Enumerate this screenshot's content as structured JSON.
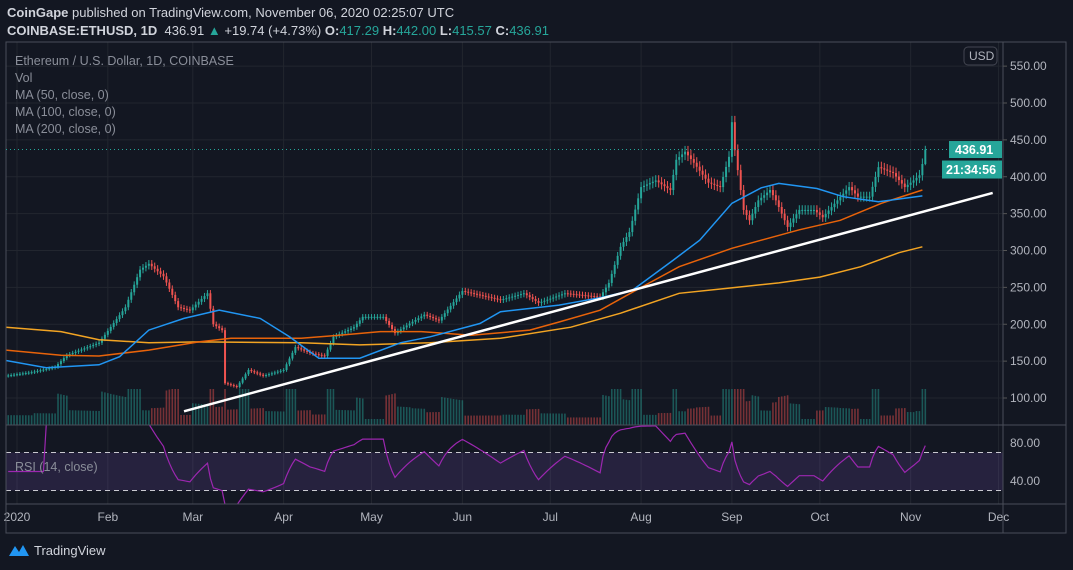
{
  "header": {
    "publisher": "CoinGape",
    "published_text": "published on TradingView.com, November 06, 2020 02:25:07 UTC",
    "symbol": "COINBASE:ETHUSD, 1D",
    "last": "436.91",
    "up_arrow": "▲",
    "change": "+19.74 (+4.73%)",
    "o_label": "O:",
    "o": "417.29",
    "h_label": "H:",
    "h": "442.00",
    "l_label": "L:",
    "l": "415.57",
    "c_label": "C:",
    "c": "436.91"
  },
  "legend": {
    "title": "Ethereum / U.S. Dollar, 1D, COINBASE",
    "vol": "Vol",
    "ma50": "MA (50, close, 0)",
    "ma100": "MA (100, close, 0)",
    "ma200": "MA (200, close, 0)",
    "rsi": "RSI (14, close)"
  },
  "price_axis": {
    "currency": "USD",
    "last_price_label": "436.91",
    "countdown": "21:34:56"
  },
  "footer": {
    "brand": "TradingView"
  },
  "chart_data": {
    "type": "candlestick",
    "x_tick_labels": [
      [
        "2020-01-01",
        "2020"
      ],
      [
        "2020-02-01",
        "Feb"
      ],
      [
        "2020-03-01",
        "Mar"
      ],
      [
        "2020-04-01",
        "Apr"
      ],
      [
        "2020-05-01",
        "May"
      ],
      [
        "2020-06-01",
        "Jun"
      ],
      [
        "2020-07-01",
        "Jul"
      ],
      [
        "2020-08-01",
        "Aug"
      ],
      [
        "2020-09-01",
        "Sep"
      ],
      [
        "2020-10-01",
        "Oct"
      ],
      [
        "2020-11-01",
        "Nov"
      ],
      [
        "2020-12-01",
        "Dec"
      ]
    ],
    "y_ticks": [
      "100.00",
      "150.00",
      "200.00",
      "250.00",
      "300.00",
      "350.00",
      "400.00",
      "450.00",
      "500.00",
      "550.00"
    ],
    "ylim": [
      70,
      560
    ],
    "rsi_ticks": [
      "40.00",
      "80.00"
    ],
    "rsi_bands": [
      30,
      70
    ],
    "rsi_period": 14,
    "last_candle": {
      "date": "2020-11-06",
      "open": 417.29,
      "high": 442.0,
      "low": 415.57,
      "close": 436.91
    },
    "close_anchors": [
      [
        "2019-12-28",
        130
      ],
      [
        "2020-01-06",
        135
      ],
      [
        "2020-01-14",
        142
      ],
      [
        "2020-01-18",
        158
      ],
      [
        "2020-01-29",
        175
      ],
      [
        "2020-02-07",
        223
      ],
      [
        "2020-02-12",
        274
      ],
      [
        "2020-02-15",
        282
      ],
      [
        "2020-02-20",
        265
      ],
      [
        "2020-02-25",
        223
      ],
      [
        "2020-02-29",
        219
      ],
      [
        "2020-03-06",
        242
      ],
      [
        "2020-03-08",
        200
      ],
      [
        "2020-03-11",
        192
      ],
      [
        "2020-03-12",
        120
      ],
      [
        "2020-03-16",
        115
      ],
      [
        "2020-03-20",
        138
      ],
      [
        "2020-03-25",
        130
      ],
      [
        "2020-04-01",
        138
      ],
      [
        "2020-04-05",
        169
      ],
      [
        "2020-04-10",
        161
      ],
      [
        "2020-04-15",
        157
      ],
      [
        "2020-04-18",
        183
      ],
      [
        "2020-04-25",
        196
      ],
      [
        "2020-04-28",
        210
      ],
      [
        "2020-05-05",
        210
      ],
      [
        "2020-05-09",
        188
      ],
      [
        "2020-05-14",
        201
      ],
      [
        "2020-05-19",
        213
      ],
      [
        "2020-05-24",
        205
      ],
      [
        "2020-06-01",
        245
      ],
      [
        "2020-06-14",
        233
      ],
      [
        "2020-06-22",
        242
      ],
      [
        "2020-06-27",
        229
      ],
      [
        "2020-07-06",
        242
      ],
      [
        "2020-07-18",
        237
      ],
      [
        "2020-07-21",
        256
      ],
      [
        "2020-07-25",
        305
      ],
      [
        "2020-07-28",
        325
      ],
      [
        "2020-08-01",
        386
      ],
      [
        "2020-08-06",
        395
      ],
      [
        "2020-08-11",
        382
      ],
      [
        "2020-08-13",
        423
      ],
      [
        "2020-08-16",
        434
      ],
      [
        "2020-08-19",
        419
      ],
      [
        "2020-08-24",
        392
      ],
      [
        "2020-08-28",
        386
      ],
      [
        "2020-08-31",
        427
      ],
      [
        "2020-09-01",
        474
      ],
      [
        "2020-09-02",
        436
      ],
      [
        "2020-09-04",
        382
      ],
      [
        "2020-09-05",
        355
      ],
      [
        "2020-09-07",
        341
      ],
      [
        "2020-09-10",
        368
      ],
      [
        "2020-09-14",
        382
      ],
      [
        "2020-09-16",
        368
      ],
      [
        "2020-09-20",
        332
      ],
      [
        "2020-09-24",
        355
      ],
      [
        "2020-09-29",
        355
      ],
      [
        "2020-10-02",
        345
      ],
      [
        "2020-10-07",
        368
      ],
      [
        "2020-10-11",
        386
      ],
      [
        "2020-10-14",
        373
      ],
      [
        "2020-10-18",
        373
      ],
      [
        "2020-10-21",
        413
      ],
      [
        "2020-10-26",
        405
      ],
      [
        "2020-10-30",
        386
      ],
      [
        "2020-11-02",
        395
      ],
      [
        "2020-11-04",
        402
      ],
      [
        "2020-11-05",
        417.29
      ],
      [
        "2020-11-06",
        436.91
      ]
    ],
    "ma50": [
      [
        "2019-12-28",
        151
      ],
      [
        "2020-01-11",
        141
      ],
      [
        "2020-01-29",
        145
      ],
      [
        "2020-02-05",
        156
      ],
      [
        "2020-02-15",
        192
      ],
      [
        "2020-02-27",
        208
      ],
      [
        "2020-03-10",
        219
      ],
      [
        "2020-03-24",
        208
      ],
      [
        "2020-04-03",
        183
      ],
      [
        "2020-04-13",
        154
      ],
      [
        "2020-04-27",
        154
      ],
      [
        "2020-05-11",
        175
      ],
      [
        "2020-05-21",
        183
      ],
      [
        "2020-06-07",
        201
      ],
      [
        "2020-06-14",
        217
      ],
      [
        "2020-07-04",
        226
      ],
      [
        "2020-07-18",
        236
      ],
      [
        "2020-07-29",
        246
      ],
      [
        "2020-08-12",
        287
      ],
      [
        "2020-08-21",
        314
      ],
      [
        "2020-09-01",
        364
      ],
      [
        "2020-09-11",
        385
      ],
      [
        "2020-09-17",
        391
      ],
      [
        "2020-09-30",
        384
      ],
      [
        "2020-10-09",
        373
      ],
      [
        "2020-10-21",
        366
      ],
      [
        "2020-11-05",
        374
      ]
    ],
    "ma100": [
      [
        "2019-12-28",
        165
      ],
      [
        "2020-01-16",
        158
      ],
      [
        "2020-01-29",
        157
      ],
      [
        "2020-02-15",
        165
      ],
      [
        "2020-03-03",
        176
      ],
      [
        "2020-03-14",
        181
      ],
      [
        "2020-04-07",
        181
      ],
      [
        "2020-04-20",
        185
      ],
      [
        "2020-05-04",
        190
      ],
      [
        "2020-05-18",
        190
      ],
      [
        "2020-06-04",
        185
      ],
      [
        "2020-06-24",
        192
      ],
      [
        "2020-07-04",
        203
      ],
      [
        "2020-07-18",
        219
      ],
      [
        "2020-08-01",
        250
      ],
      [
        "2020-08-14",
        278
      ],
      [
        "2020-09-01",
        303
      ],
      [
        "2020-09-11",
        314
      ],
      [
        "2020-09-24",
        328
      ],
      [
        "2020-10-08",
        341
      ],
      [
        "2020-10-22",
        364
      ],
      [
        "2020-11-05",
        382
      ]
    ],
    "ma200": [
      [
        "2019-12-28",
        196
      ],
      [
        "2020-01-16",
        190
      ],
      [
        "2020-01-29",
        179
      ],
      [
        "2020-02-15",
        175
      ],
      [
        "2020-03-03",
        176
      ],
      [
        "2020-04-07",
        175
      ],
      [
        "2020-04-27",
        172
      ],
      [
        "2020-05-21",
        175
      ],
      [
        "2020-06-14",
        181
      ],
      [
        "2020-07-08",
        196
      ],
      [
        "2020-07-25",
        215
      ],
      [
        "2020-08-14",
        242
      ],
      [
        "2020-08-31",
        249
      ],
      [
        "2020-09-17",
        256
      ],
      [
        "2020-10-01",
        264
      ],
      [
        "2020-10-15",
        278
      ],
      [
        "2020-10-28",
        297
      ],
      [
        "2020-11-05",
        305
      ]
    ],
    "trendline": [
      [
        "2020-02-27",
        82
      ],
      [
        "2020-11-29",
        378
      ]
    ],
    "colors": {
      "up": "#26a69a",
      "down": "#ef5350",
      "ma50": "#2196f3",
      "ma100": "#e8630a",
      "ma200": "#f2a423",
      "rsi": "#9c27b0",
      "trendline": "#ffffff"
    }
  }
}
